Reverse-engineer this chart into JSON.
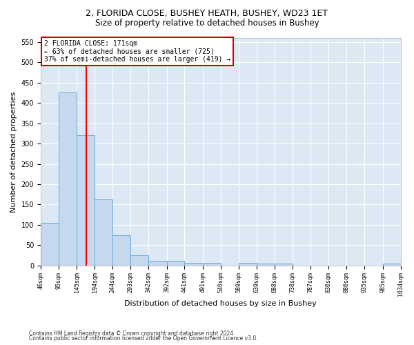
{
  "title1": "2, FLORIDA CLOSE, BUSHEY HEATH, BUSHEY, WD23 1ET",
  "title2": "Size of property relative to detached houses in Bushey",
  "xlabel": "Distribution of detached houses by size in Bushey",
  "ylabel": "Number of detached properties",
  "bar_edges": [
    46,
    95,
    145,
    194,
    244,
    293,
    342,
    392,
    441,
    491,
    540,
    589,
    639,
    688,
    738,
    787,
    836,
    886,
    935,
    985,
    1034
  ],
  "bar_heights": [
    105,
    425,
    320,
    162,
    75,
    25,
    12,
    12,
    7,
    7,
    0,
    7,
    5,
    5,
    0,
    0,
    0,
    0,
    0,
    5
  ],
  "bar_color": "#C5D8EE",
  "bar_edge_color": "#6aaad4",
  "redline_x": 171,
  "annotation_line1": "2 FLORIDA CLOSE: 171sqm",
  "annotation_line2": "← 63% of detached houses are smaller (725)",
  "annotation_line3": "37% of semi-detached houses are larger (419) →",
  "annotation_box_color": "#ffffff",
  "annotation_box_edge_color": "#cc0000",
  "ylim": [
    0,
    560
  ],
  "yticks": [
    0,
    50,
    100,
    150,
    200,
    250,
    300,
    350,
    400,
    450,
    500,
    550
  ],
  "footnote1": "Contains HM Land Registry data © Crown copyright and database right 2024.",
  "footnote2": "Contains public sector information licensed under the Open Government Licence v3.0.",
  "tick_labels": [
    "46sqm",
    "95sqm",
    "145sqm",
    "194sqm",
    "244sqm",
    "293sqm",
    "342sqm",
    "392sqm",
    "441sqm",
    "491sqm",
    "540sqm",
    "589sqm",
    "639sqm",
    "688sqm",
    "738sqm",
    "787sqm",
    "836sqm",
    "886sqm",
    "935sqm",
    "985sqm",
    "1034sqm"
  ],
  "bg_color": "#dce9f5",
  "grid_color": "#ffffff",
  "title1_fontsize": 9,
  "title2_fontsize": 8.5,
  "xlabel_fontsize": 8,
  "ylabel_fontsize": 8,
  "tick_fontsize": 6,
  "annot_fontsize": 7,
  "footnote_fontsize": 5.5
}
